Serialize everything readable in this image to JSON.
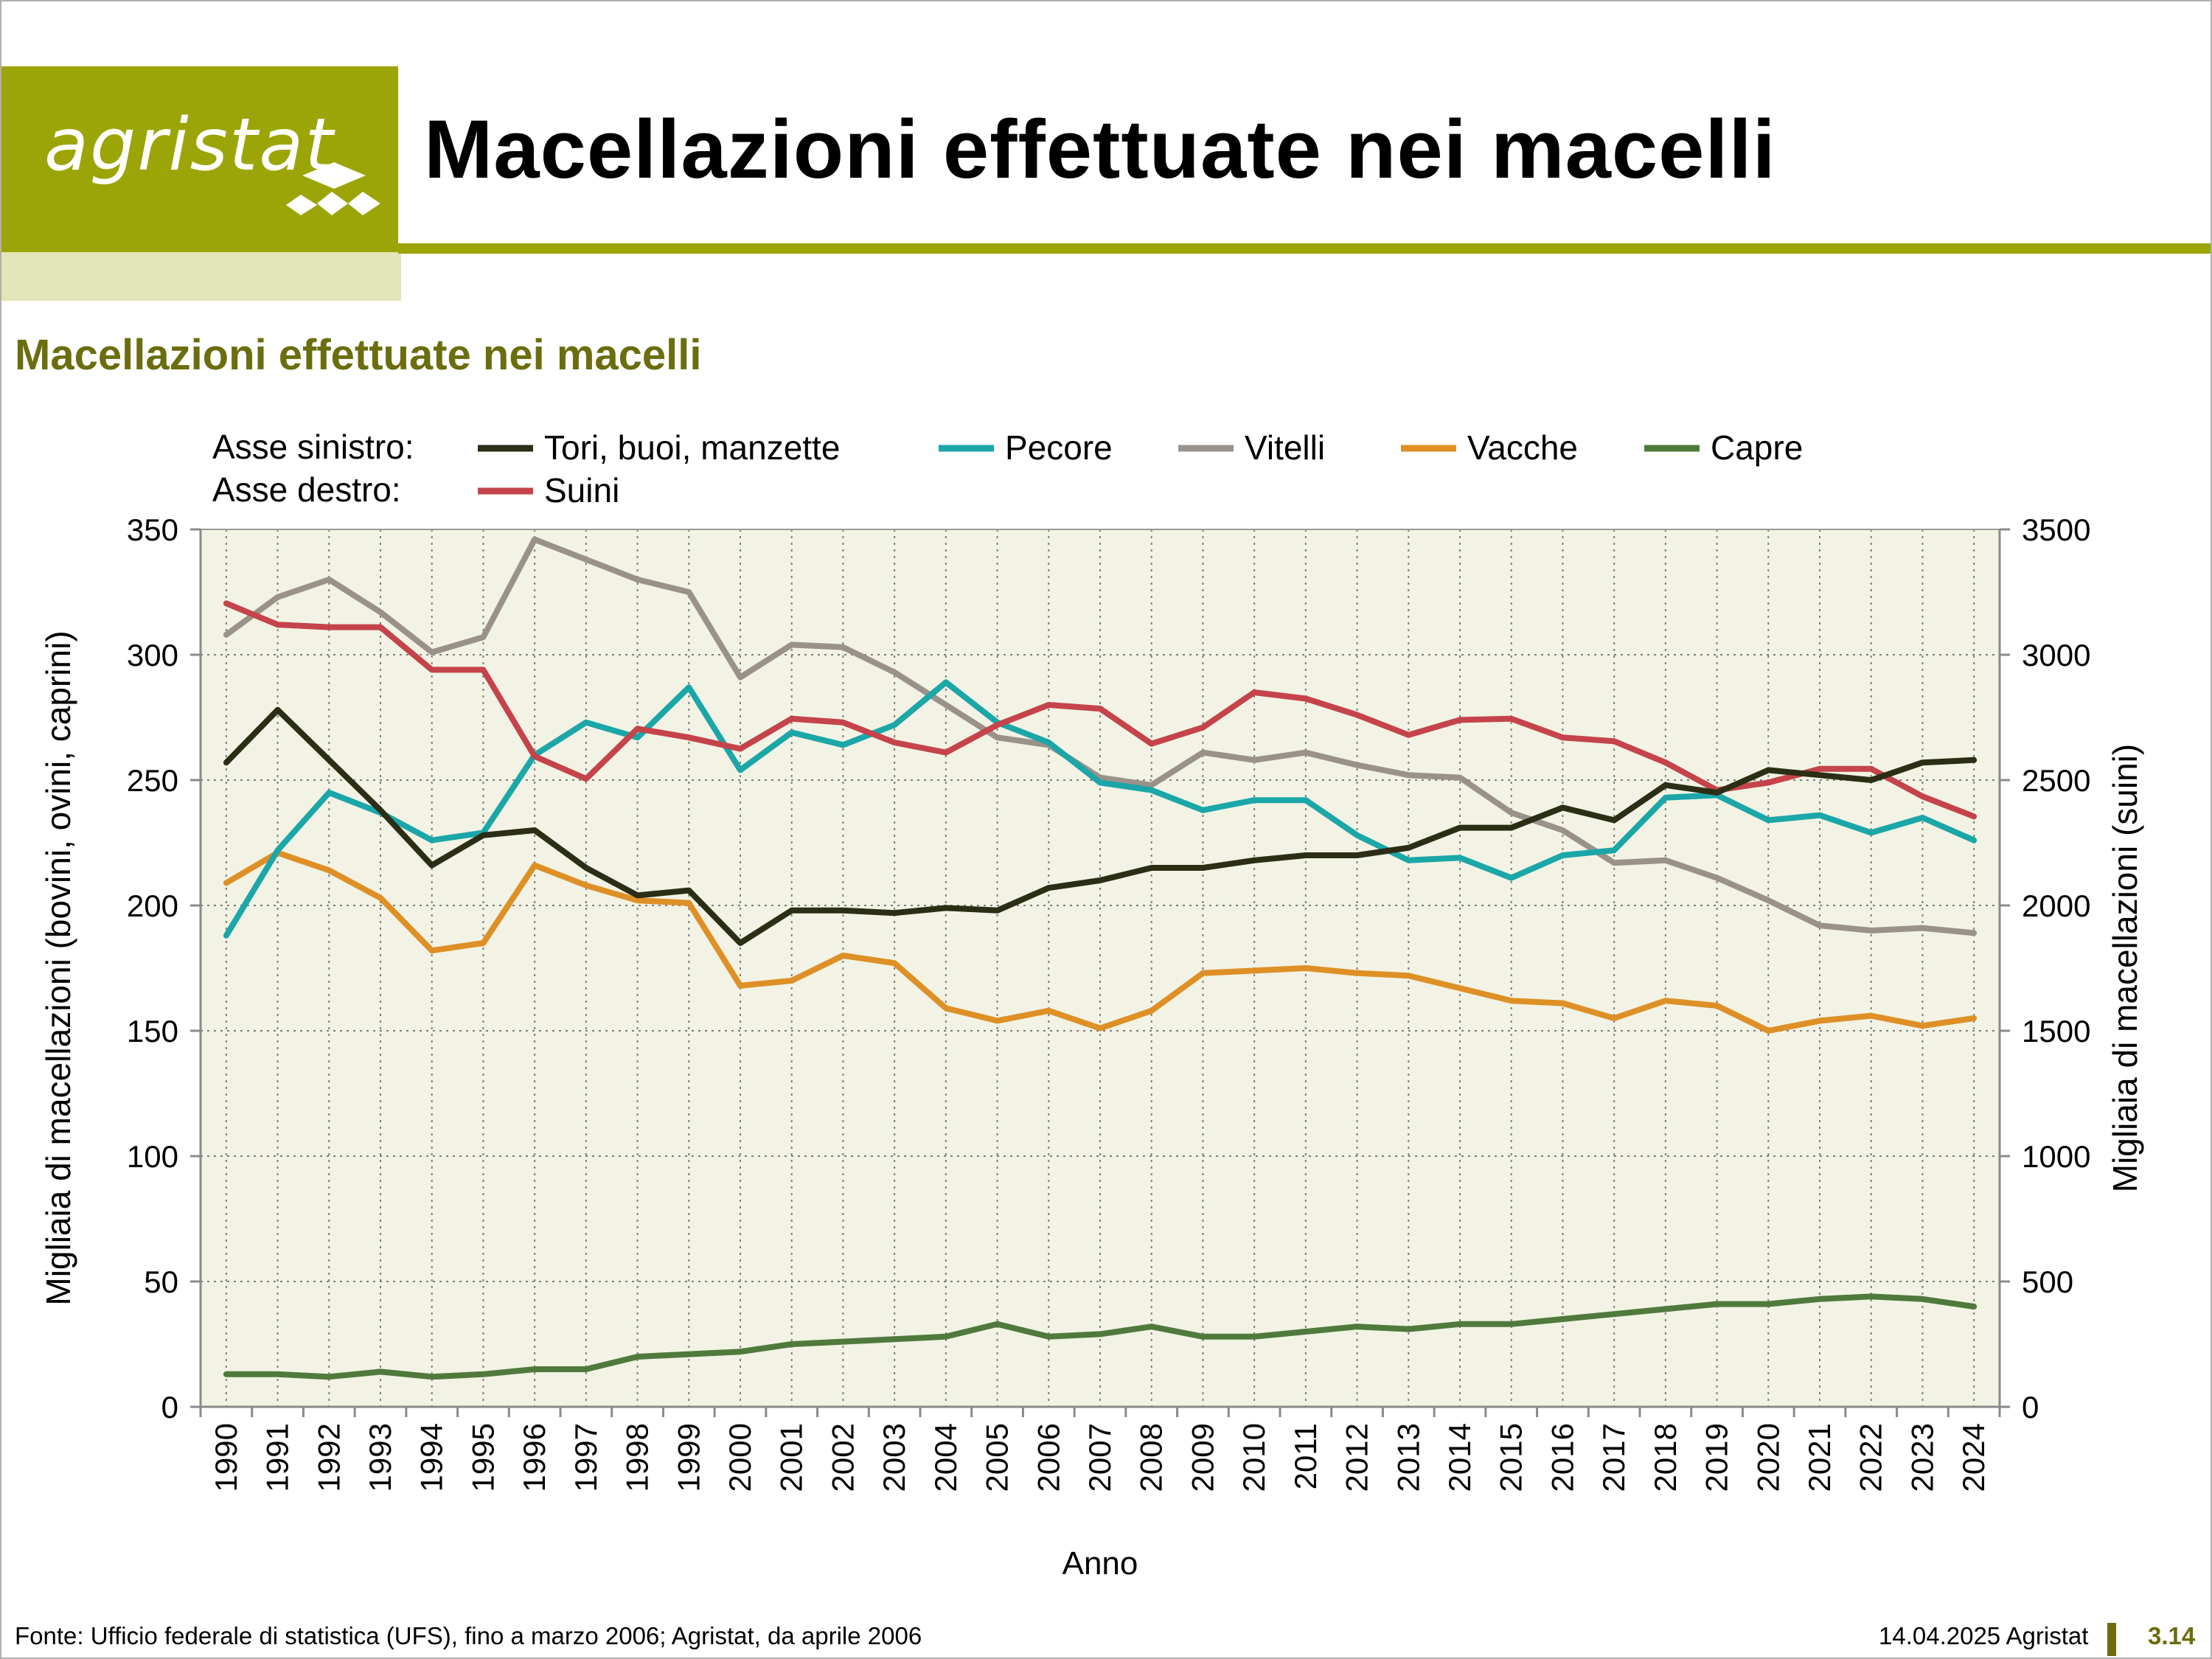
{
  "header": {
    "logo_text": "agristat",
    "title": "Macellazioni effettuate nei macelli"
  },
  "chart_heading": "Macellazioni effettuate nei macelli",
  "legend": {
    "left_axis_label": "Asse sinistro:",
    "right_axis_label": "Asse destro:"
  },
  "colors": {
    "brand_green": "#9ca507",
    "brand_pale": "#e3e6b8",
    "heading_olive": "#6b6d0e",
    "plot_background": "#f2f3e4"
  },
  "chart_data": {
    "type": "line",
    "x": [
      1990,
      1991,
      1992,
      1993,
      1994,
      1995,
      1996,
      1997,
      1998,
      1999,
      2000,
      2001,
      2002,
      2003,
      2004,
      2005,
      2006,
      2007,
      2008,
      2009,
      2010,
      2011,
      2012,
      2013,
      2014,
      2015,
      2016,
      2017,
      2018,
      2019,
      2020,
      2021,
      2022,
      2023,
      2024
    ],
    "xlabel": "Anno",
    "ylabel_left": "Migliaia di macellazioni (bovini, ovini, caprini)",
    "ylabel_right": "Migliaia di macellazioni (suini)",
    "ylim_left": [
      0,
      350
    ],
    "ylim_right": [
      0,
      3500
    ],
    "yticks_left": [
      0,
      50,
      100,
      150,
      200,
      250,
      300,
      350
    ],
    "yticks_right": [
      0,
      500,
      1000,
      1500,
      2000,
      2500,
      3000,
      3500
    ],
    "grid": true,
    "legend_position": "top",
    "series": [
      {
        "name": "Tori, buoi, manzette",
        "axis": "left",
        "color": "#2b2e15",
        "values": [
          257,
          278,
          258,
          238,
          216,
          228,
          230,
          215,
          204,
          206,
          185,
          198,
          198,
          197,
          199,
          198,
          207,
          210,
          215,
          215,
          218,
          220,
          220,
          223,
          231,
          231,
          239,
          234,
          248,
          245,
          254,
          252,
          250,
          257,
          258
        ]
      },
      {
        "name": "Pecore",
        "axis": "left",
        "color": "#1ba6a8",
        "values": [
          188,
          222,
          245,
          237,
          226,
          229,
          260,
          273,
          267,
          287,
          254,
          269,
          264,
          272,
          289,
          273,
          265,
          249,
          246,
          238,
          242,
          242,
          228,
          218,
          219,
          211,
          220,
          222,
          243,
          244,
          234,
          236,
          229,
          235,
          226
        ]
      },
      {
        "name": "Vitelli",
        "axis": "left",
        "color": "#9a928a",
        "values": [
          308,
          323,
          330,
          317,
          301,
          307,
          346,
          338,
          330,
          325,
          291,
          304,
          303,
          293,
          280,
          267,
          264,
          251,
          248,
          261,
          258,
          261,
          256,
          252,
          251,
          237,
          230,
          217,
          218,
          211,
          202,
          192,
          190,
          191,
          189
        ]
      },
      {
        "name": "Vacche",
        "axis": "left",
        "color": "#de9026",
        "values": [
          209,
          221,
          214,
          203,
          182,
          185,
          216,
          208,
          202,
          201,
          168,
          170,
          180,
          177,
          159,
          154,
          158,
          151,
          158,
          173,
          174,
          175,
          173,
          172,
          167,
          162,
          161,
          155,
          162,
          160,
          150,
          154,
          156,
          152,
          155
        ]
      },
      {
        "name": "Capre",
        "axis": "left",
        "color": "#4f7a3c",
        "values": [
          13,
          13,
          12,
          14,
          12,
          13,
          15,
          15,
          20,
          21,
          22,
          25,
          26,
          27,
          28,
          33,
          28,
          29,
          32,
          28,
          28,
          30,
          32,
          31,
          33,
          33,
          35,
          37,
          39,
          41,
          41,
          43,
          44,
          43,
          40
        ]
      },
      {
        "name": "Suini",
        "axis": "right",
        "color": "#c5434a",
        "values": [
          3205,
          3120,
          3110,
          3110,
          2940,
          2940,
          2595,
          2505,
          2705,
          2670,
          2625,
          2745,
          2730,
          2650,
          2610,
          2720,
          2800,
          2785,
          2645,
          2710,
          2850,
          2825,
          2760,
          2680,
          2740,
          2745,
          2670,
          2655,
          2570,
          2460,
          2490,
          2545,
          2545,
          2435,
          2355
        ]
      }
    ]
  },
  "footer": {
    "source": "Fonte: Ufficio federale di statistica (UFS), fino a marzo 2006; Agristat, da aprile 2006",
    "date": "14.04.2025 Agristat",
    "page_number": "3.14"
  }
}
